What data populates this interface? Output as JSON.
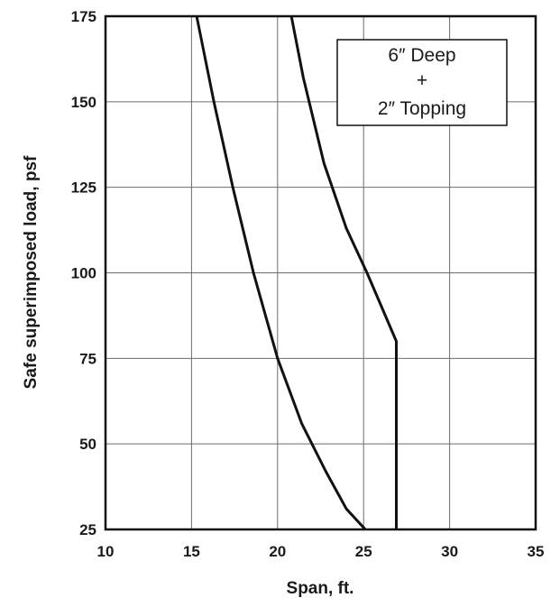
{
  "chart_data": {
    "type": "line",
    "xlabel": "Span, ft.",
    "ylabel": "Safe superimposed load, psf",
    "xlim": [
      10,
      35
    ],
    "ylim": [
      25,
      175
    ],
    "xticks": [
      "10",
      "15",
      "20",
      "25",
      "30",
      "35"
    ],
    "yticks": [
      "25",
      "50",
      "75",
      "100",
      "125",
      "150",
      "175"
    ],
    "grid": true,
    "annotation": {
      "lines": [
        "6″ Deep",
        "+",
        "2″ Topping"
      ],
      "placement": "top-right"
    },
    "series": [
      {
        "x": [
          15.3,
          16.3,
          17.4,
          18.6,
          20.0,
          21.4,
          22.8,
          24.0,
          25.1
        ],
        "y": [
          175,
          150,
          125,
          100,
          75,
          56,
          42,
          31,
          25
        ]
      },
      {
        "x": [
          20.8,
          21.5,
          22.7,
          24.0,
          25.2,
          26.9,
          26.9,
          26.9
        ],
        "y": [
          175,
          157,
          132,
          113,
          100,
          80,
          50,
          25
        ]
      }
    ]
  }
}
